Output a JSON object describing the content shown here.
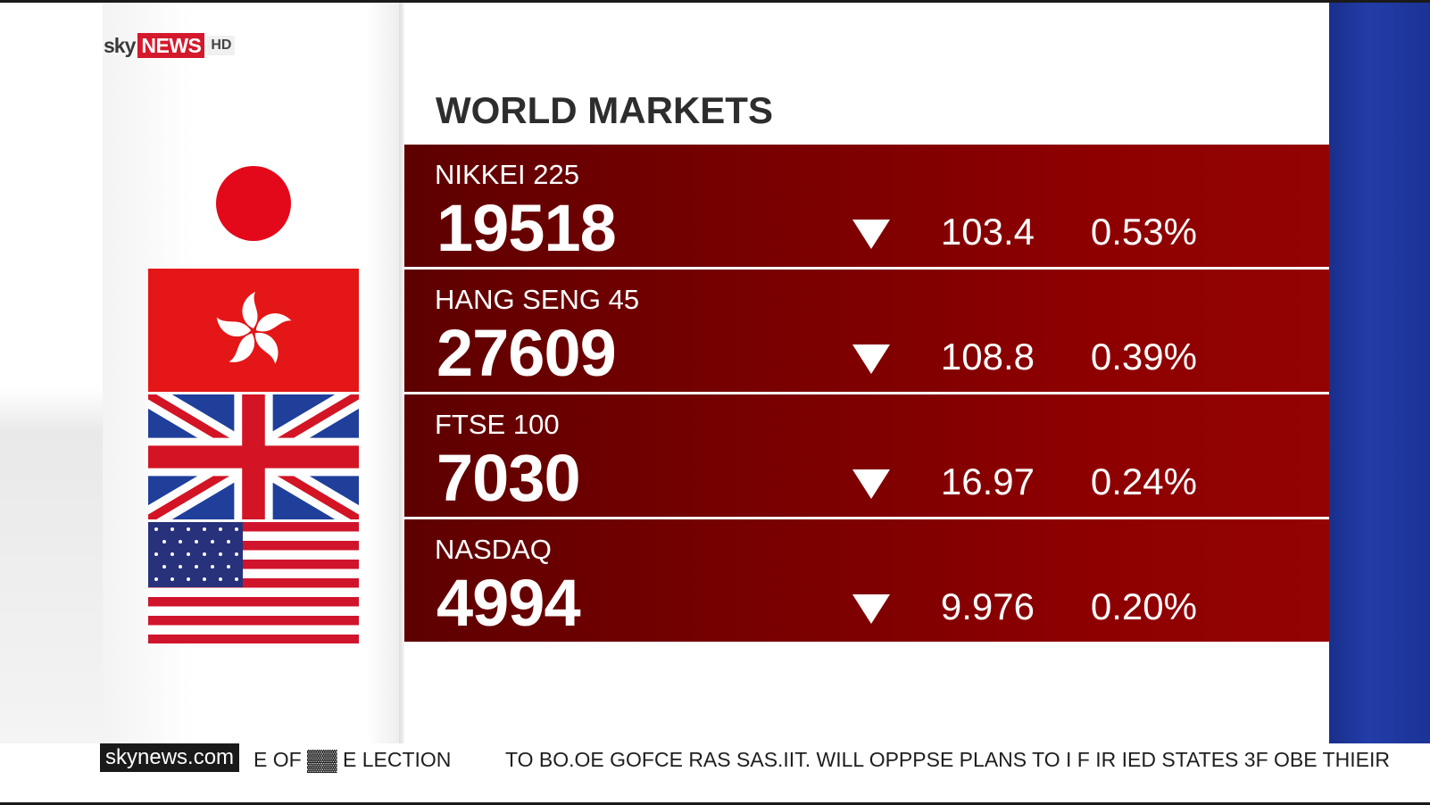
{
  "channel": {
    "logo_sky": "sky",
    "logo_news": "NEWS",
    "logo_hd": "HD",
    "brand_color": "#d5192c"
  },
  "title": "WORLD MARKETS",
  "markets": [
    {
      "name": "NIKKEI 225",
      "value": "19518",
      "direction": "down",
      "change": "103.4",
      "percent": "0.53%",
      "flag_icon": "japan-flag-icon"
    },
    {
      "name": "HANG SENG 45",
      "value": "27609",
      "direction": "down",
      "change": "108.8",
      "percent": "0.39%",
      "flag_icon": "hong-kong-flag-icon"
    },
    {
      "name": "FTSE 100",
      "value": "7030",
      "direction": "down",
      "change": "16.97",
      "percent": "0.24%",
      "flag_icon": "uk-flag-icon"
    },
    {
      "name": "NASDAQ",
      "value": "4994",
      "direction": "down",
      "change": "9.976",
      "percent": "0.20%",
      "flag_icon": "us-flag-icon"
    }
  ],
  "ticker": {
    "brand": "skynews.com",
    "segment_1": "E OF ▓▓ E LECTION",
    "segment_2": "TO BO.OE GOFCE RAS SAS.IIT. WILL OPPPSE PLANS TO I F IR IED STATES 3F OBE THIEIR"
  },
  "colors": {
    "row_dark": "#5e0000",
    "row_light": "#940303",
    "side_blue": "#223da8"
  }
}
